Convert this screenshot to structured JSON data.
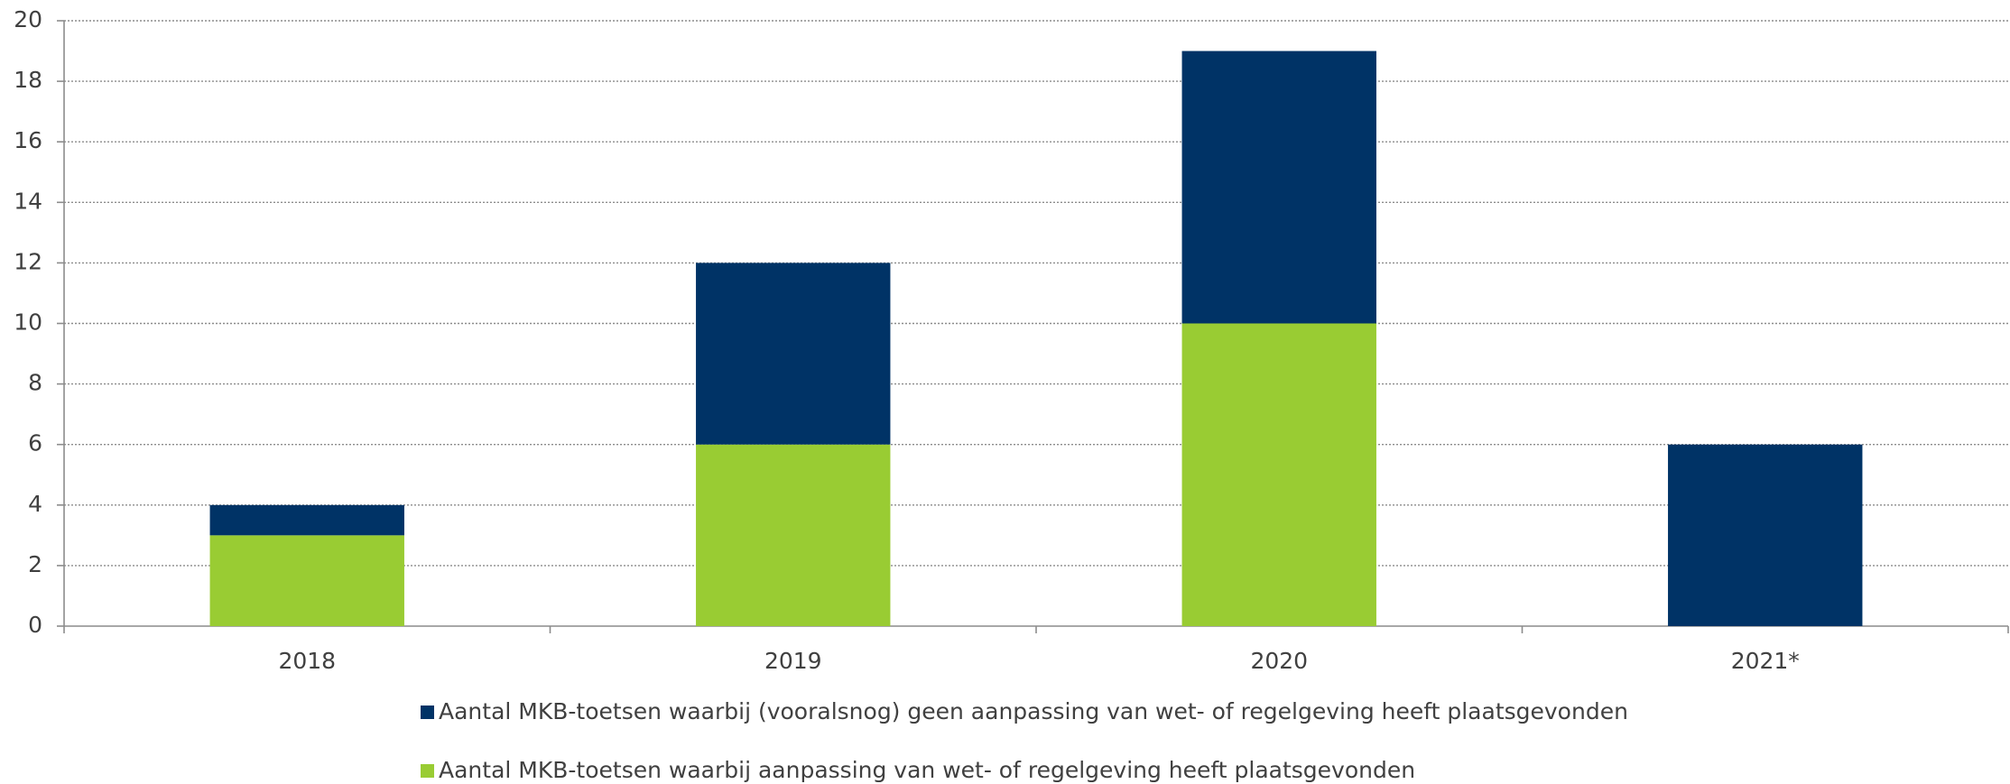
{
  "chart_data": {
    "type": "stacked_bar",
    "categories": [
      "2018",
      "2019",
      "2020",
      "2021*"
    ],
    "series": [
      {
        "name": "Aantal MKB-toetsen waarbij (vooralsnog) geen aanpassing van wet- of regelgeving heeft plaatsgevonden",
        "color": "#003366",
        "values": [
          1,
          6,
          9,
          6
        ]
      },
      {
        "name": "Aantal MKB-toetsen waarbij aanpassing van wet- of regelgeving heeft plaatsgevonden",
        "color": "#99cc33",
        "values": [
          3,
          6,
          10,
          0
        ]
      }
    ],
    "ylim": [
      0,
      20
    ],
    "yticks": [
      0,
      2,
      4,
      6,
      8,
      10,
      12,
      14,
      16,
      18,
      20
    ],
    "grid": true,
    "legend": "bottom"
  }
}
